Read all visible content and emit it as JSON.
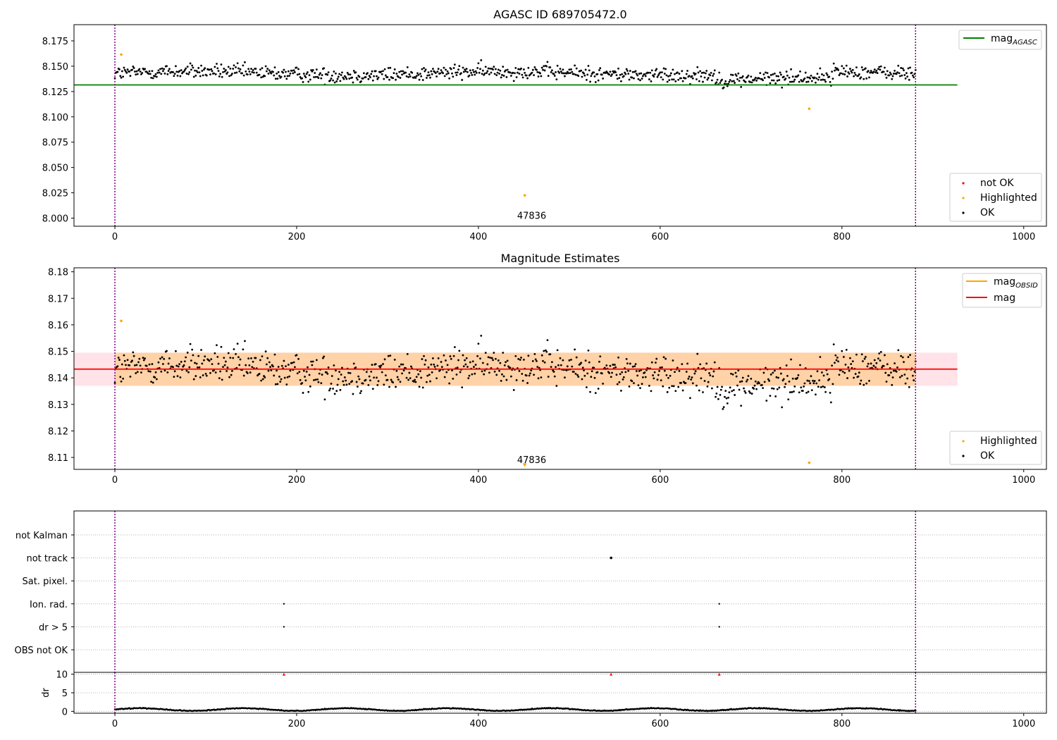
{
  "chart_data": [
    {
      "type": "scatter",
      "title": "AGASC ID 689705472.0",
      "xlim": [
        -45,
        1025
      ],
      "ylim": [
        7.992,
        8.191
      ],
      "xticks": [
        0,
        200,
        400,
        600,
        800,
        1000
      ],
      "yticks": [
        8.0,
        8.025,
        8.05,
        8.075,
        8.1,
        8.125,
        8.15,
        8.175
      ],
      "vlines": [
        0,
        881
      ],
      "hline": {
        "name": "mag_AGASC",
        "y": 8.1315,
        "x": [
          -45,
          927
        ],
        "color": "#008000"
      },
      "series": [
        {
          "name": "not OK",
          "color": "#ff0000",
          "points": []
        },
        {
          "name": "Highlighted",
          "color": "#ffa500",
          "points": [
            [
              7,
              8.1615
            ],
            [
              451,
              8.0225
            ],
            [
              764,
              8.108
            ]
          ]
        },
        {
          "name": "OK",
          "color": "#000000",
          "x_range": [
            0,
            881
          ],
          "y_mean": 8.143,
          "y_spread": 0.0065
        }
      ],
      "annotations": [
        {
          "text": "47836",
          "x": 440,
          "y": 8.002
        }
      ],
      "legend_upper": [
        "mag",
        "AGASC"
      ],
      "legend_lower": [
        "not OK",
        "Highlighted",
        "OK"
      ]
    },
    {
      "type": "scatter",
      "title": "Magnitude Estimates",
      "xlim": [
        -45,
        1025
      ],
      "ylim": [
        8.1055,
        8.1815
      ],
      "xticks": [
        0,
        200,
        400,
        600,
        800,
        1000
      ],
      "yticks": [
        8.11,
        8.12,
        8.13,
        8.14,
        8.15,
        8.16,
        8.17,
        8.18
      ],
      "vlines": [
        0,
        881
      ],
      "bands": [
        {
          "y": [
            8.137,
            8.1495
          ],
          "x": [
            -45,
            927
          ],
          "color": "#ffc0cb"
        },
        {
          "y": [
            8.137,
            8.1495
          ],
          "x": [
            0,
            881
          ],
          "color": "#ffa500"
        }
      ],
      "lines": [
        {
          "name": "mag",
          "y": 8.1433,
          "x": [
            -45,
            927
          ],
          "color": "#ff0000"
        }
      ],
      "series": [
        {
          "name": "Highlighted",
          "color": "#ffa500",
          "points": [
            [
              7,
              8.1615
            ],
            [
              764,
              8.108
            ]
          ]
        },
        {
          "name": "OK",
          "color": "#000000",
          "x_range": [
            0,
            881
          ],
          "y_mean": 8.143,
          "y_spread": 0.0065
        }
      ],
      "markers": [
        {
          "x": 451,
          "y": 8.107,
          "shape": "triangle-down",
          "color": "#ffa500"
        }
      ],
      "annotations": [
        {
          "text": "47836",
          "x": 440,
          "y": 8.109
        }
      ],
      "legend_upper": [
        "mag",
        "OBSID",
        "mag"
      ],
      "legend_lower": [
        "Highlighted",
        "OK"
      ]
    },
    {
      "type": "scatter",
      "title": "",
      "xlim": [
        -45,
        1025
      ],
      "xticks": [
        0,
        200,
        400,
        600,
        800,
        1000
      ],
      "vlines": [
        0,
        881
      ],
      "categories": [
        "not Kalman",
        "not track",
        "Sat. pixel.",
        "Ion. rad.",
        "dr > 5",
        "OBS not OK"
      ],
      "flags": [
        {
          "category": "not track",
          "x": [
            546
          ]
        },
        {
          "category": "Ion. rad.",
          "x": [
            186,
            665
          ]
        },
        {
          "category": "dr > 5",
          "x": [
            186,
            665
          ]
        }
      ]
    },
    {
      "type": "scatter",
      "title": "",
      "ylabel": "dr",
      "xlim": [
        -45,
        1025
      ],
      "ylim": [
        -0.5,
        10.5
      ],
      "xticks": [
        0,
        200,
        400,
        600,
        800,
        1000
      ],
      "yticks": [
        0,
        5,
        10
      ],
      "vlines": [
        0,
        881
      ],
      "series": [
        {
          "name": "dr",
          "color": "#000000",
          "x_range": [
            0,
            881
          ],
          "y_mean": 0.5,
          "y_spread": 0.4
        }
      ],
      "outliers": [
        {
          "x": 186,
          "y": 10,
          "color": "#ff0000"
        },
        {
          "x": 546,
          "y": 10,
          "color": "#ff0000"
        },
        {
          "x": 665,
          "y": 10,
          "color": "#ff0000"
        }
      ]
    }
  ]
}
